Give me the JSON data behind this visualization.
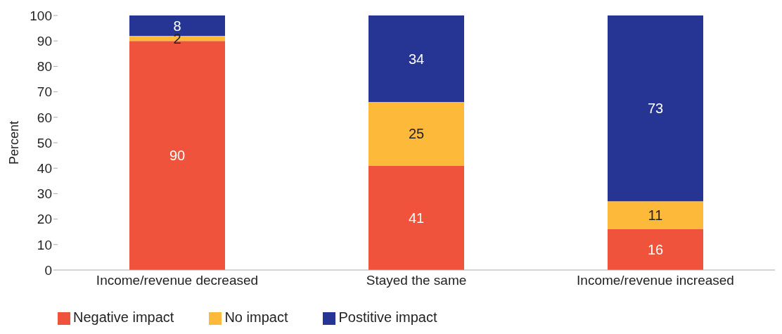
{
  "chart_data": {
    "type": "bar",
    "stacked": true,
    "ylabel": "Percent",
    "categories": [
      "Income/revenue decreased",
      "Stayed the same",
      "Income/revenue increased"
    ],
    "series": [
      {
        "name": "Negative impact",
        "color": "#f0533b",
        "values": [
          90,
          41,
          16
        ]
      },
      {
        "name": "No impact",
        "color": "#fdb93a",
        "values": [
          2,
          25,
          11
        ]
      },
      {
        "name": "Postitive impact",
        "color": "#263593",
        "values": [
          8,
          34,
          73
        ]
      }
    ],
    "ylim": [
      0,
      100
    ],
    "yticks": [
      0,
      10,
      20,
      30,
      40,
      50,
      60,
      70,
      80,
      90,
      100
    ],
    "grid": false,
    "legend": "bottom left",
    "data_labels": true
  }
}
